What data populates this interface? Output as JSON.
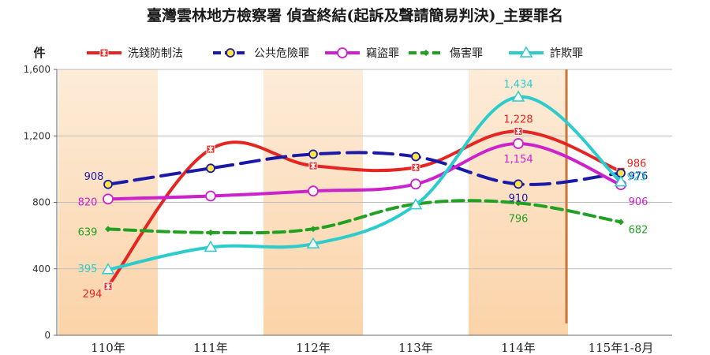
{
  "chart_data": {
    "type": "line",
    "title": "臺灣雲林地方檢察署 偵查終結(起訴及聲請簡易判決)_主要罪名",
    "ylabel": "件",
    "xlabel": "",
    "categories": [
      "110年",
      "111年",
      "112年",
      "113年",
      "114年",
      "115年1-8月"
    ],
    "ylim": [
      0,
      1600
    ],
    "yticks": [
      "0",
      "400",
      "800",
      "1,200",
      "1,600"
    ],
    "highlight_columns": [
      0,
      2,
      4
    ],
    "legend_position": "top",
    "series": [
      {
        "name": "洗錢防制法",
        "values": [
          294,
          1120,
          1020,
          1010,
          1228,
          986
        ],
        "color": "#e52521",
        "marker": "square",
        "labels": [
          {
            "i": 0,
            "text": "294"
          },
          {
            "i": 4,
            "text": "1,228"
          },
          {
            "i": 5,
            "text": "986"
          }
        ]
      },
      {
        "name": "公共危險罪",
        "values": [
          908,
          1005,
          1090,
          1075,
          910,
          976
        ],
        "color": "#1a1aa6",
        "marker": "circle-yellow",
        "labels": [
          {
            "i": 0,
            "text": "908"
          },
          {
            "i": 4,
            "text": "910"
          },
          {
            "i": 5,
            "text": "976"
          }
        ]
      },
      {
        "name": "竊盜罪",
        "values": [
          820,
          838,
          868,
          910,
          1154,
          906
        ],
        "color": "#cc22cc",
        "marker": "circle-white",
        "labels": [
          {
            "i": 0,
            "text": "820"
          },
          {
            "i": 4,
            "text": "1,154"
          },
          {
            "i": 5,
            "text": "906"
          }
        ]
      },
      {
        "name": "傷害罪",
        "values": [
          639,
          618,
          640,
          790,
          796,
          682
        ],
        "color": "#22a022",
        "marker": "diamond",
        "labels": [
          {
            "i": 0,
            "text": "639"
          },
          {
            "i": 4,
            "text": "796"
          },
          {
            "i": 5,
            "text": "682"
          }
        ]
      },
      {
        "name": "詐欺罪",
        "values": [
          395,
          530,
          550,
          785,
          1434,
          923
        ],
        "color": "#2ccccc",
        "marker": "triangle",
        "labels": [
          {
            "i": 0,
            "text": "395"
          },
          {
            "i": 4,
            "text": "1,434"
          },
          {
            "i": 5,
            "text": "923"
          }
        ]
      }
    ]
  }
}
